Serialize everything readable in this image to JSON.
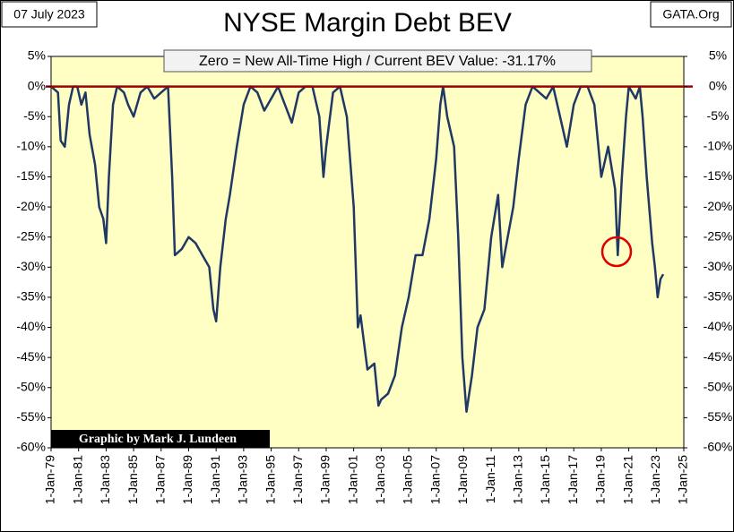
{
  "chart_data": {
    "type": "line",
    "title": "NYSE Margin Debt BEV",
    "date_label": "07 July 2023",
    "source": "GATA.Org",
    "annotation": "Zero = New All-Time High / Current BEV Value:  -31.17%",
    "credit": "Graphic by Mark J. Lundeen",
    "xlim": [
      1979,
      2025
    ],
    "xticks": [
      {
        "value": 1979,
        "label": "1-Jan-79"
      },
      {
        "value": 1981,
        "label": "1-Jan-81"
      },
      {
        "value": 1983,
        "label": "1-Jan-83"
      },
      {
        "value": 1985,
        "label": "1-Jan-85"
      },
      {
        "value": 1987,
        "label": "1-Jan-87"
      },
      {
        "value": 1989,
        "label": "1-Jan-89"
      },
      {
        "value": 1991,
        "label": "1-Jan-91"
      },
      {
        "value": 1993,
        "label": "1-Jan-93"
      },
      {
        "value": 1995,
        "label": "1-Jan-95"
      },
      {
        "value": 1997,
        "label": "1-Jan-97"
      },
      {
        "value": 1999,
        "label": "1-Jan-99"
      },
      {
        "value": 2001,
        "label": "1-Jan-01"
      },
      {
        "value": 2003,
        "label": "1-Jan-03"
      },
      {
        "value": 2005,
        "label": "1-Jan-05"
      },
      {
        "value": 2007,
        "label": "1-Jan-07"
      },
      {
        "value": 2009,
        "label": "1-Jan-09"
      },
      {
        "value": 2011,
        "label": "1-Jan-11"
      },
      {
        "value": 2013,
        "label": "1-Jan-13"
      },
      {
        "value": 2015,
        "label": "1-Jan-15"
      },
      {
        "value": 2017,
        "label": "1-Jan-17"
      },
      {
        "value": 2019,
        "label": "1-Jan-19"
      },
      {
        "value": 2021,
        "label": "1-Jan-21"
      },
      {
        "value": 2023,
        "label": "1-Jan-23"
      },
      {
        "value": 2025,
        "label": "1-Jan-25"
      }
    ],
    "ylim": [
      -60,
      5
    ],
    "yticks": [
      {
        "value": 5,
        "label": "5%"
      },
      {
        "value": 0,
        "label": "0%"
      },
      {
        "value": -5,
        "label": "-5%"
      },
      {
        "value": -10,
        "label": "-10%"
      },
      {
        "value": -15,
        "label": "-15%"
      },
      {
        "value": -20,
        "label": "-20%"
      },
      {
        "value": -25,
        "label": "-25%"
      },
      {
        "value": -30,
        "label": "-30%"
      },
      {
        "value": -35,
        "label": "-35%"
      },
      {
        "value": -40,
        "label": "-40%"
      },
      {
        "value": -45,
        "label": "-45%"
      },
      {
        "value": -50,
        "label": "-50%"
      },
      {
        "value": -55,
        "label": "-55%"
      },
      {
        "value": -60,
        "label": "-60%"
      }
    ],
    "y2lim": [
      -60,
      5
    ],
    "y2ticks": [
      {
        "value": 5,
        "label": "5%"
      },
      {
        "value": 0,
        "label": "0%"
      },
      {
        "value": -5,
        "label": "-5%"
      },
      {
        "value": -10,
        "label": "-10%"
      },
      {
        "value": -15,
        "label": "-15%"
      },
      {
        "value": -20,
        "label": "-20%"
      },
      {
        "value": -25,
        "label": "-25%"
      },
      {
        "value": -30,
        "label": "-30%"
      },
      {
        "value": -35,
        "label": "-35%"
      },
      {
        "value": -40,
        "label": "-40%"
      },
      {
        "value": -45,
        "label": "-45%"
      },
      {
        "value": -50,
        "label": "-50%"
      },
      {
        "value": -55,
        "label": "-55%"
      },
      {
        "value": -60,
        "label": "-60%"
      }
    ],
    "reference_line": {
      "value": 0,
      "color": "#a00000"
    },
    "background": "#ffffc4",
    "series": [
      {
        "name": "NYSE Margin Debt BEV",
        "color": "#1f3864",
        "x": [
          1979.0,
          1979.5,
          1979.7,
          1980.0,
          1980.3,
          1980.6,
          1980.9,
          1981.2,
          1981.5,
          1981.8,
          1982.2,
          1982.5,
          1982.8,
          1983.0,
          1983.2,
          1983.5,
          1983.8,
          1984.3,
          1984.6,
          1985.0,
          1985.5,
          1986.0,
          1986.5,
          1987.0,
          1987.5,
          1987.8,
          1988.0,
          1988.5,
          1989.0,
          1989.5,
          1990.0,
          1990.5,
          1990.8,
          1991.0,
          1991.3,
          1991.7,
          1992.0,
          1992.5,
          1993.0,
          1993.5,
          1994.0,
          1994.5,
          1995.0,
          1995.5,
          1996.0,
          1996.5,
          1997.0,
          1997.5,
          1998.0,
          1998.5,
          1998.8,
          1999.0,
          1999.5,
          2000.0,
          2000.5,
          2001.0,
          2001.3,
          2001.5,
          2002.0,
          2002.5,
          2002.8,
          2003.0,
          2003.5,
          2004.0,
          2004.5,
          2005.0,
          2005.5,
          2006.0,
          2006.5,
          2007.0,
          2007.3,
          2007.5,
          2007.8,
          2008.3,
          2008.6,
          2008.9,
          2009.2,
          2009.6,
          2010.0,
          2010.5,
          2011.0,
          2011.5,
          2011.8,
          2012.2,
          2012.6,
          2013.0,
          2013.5,
          2014.0,
          2014.5,
          2015.0,
          2015.5,
          2016.0,
          2016.5,
          2017.0,
          2017.5,
          2018.0,
          2018.5,
          2019.0,
          2019.5,
          2020.0,
          2020.2,
          2020.5,
          2020.8,
          2021.0,
          2021.5,
          2021.8,
          2022.0,
          2022.3,
          2022.7,
          2022.9,
          2023.1,
          2023.3,
          2023.5
        ],
        "values": [
          0,
          -1,
          -9,
          -10,
          -3,
          0,
          0,
          -3,
          -1,
          -8,
          -13,
          -20,
          -22,
          -26,
          -15,
          -3,
          0,
          -1,
          -3,
          -5,
          -1,
          0,
          -2,
          -1,
          0,
          -15,
          -28,
          -27,
          -25,
          -26,
          -28,
          -30,
          -37,
          -39,
          -30,
          -22,
          -18,
          -10,
          -3,
          0,
          -1,
          -4,
          -2,
          0,
          -3,
          -6,
          -1,
          0,
          0,
          -5,
          -15,
          -10,
          -1,
          0,
          -5,
          -20,
          -40,
          -38,
          -47,
          -46,
          -53,
          -52,
          -51,
          -48,
          -40,
          -35,
          -28,
          -28,
          -22,
          -12,
          -3,
          0,
          -5,
          -10,
          -25,
          -45,
          -54,
          -48,
          -40,
          -37,
          -25,
          -18,
          -30,
          -25,
          -20,
          -12,
          -3,
          0,
          -1,
          -2,
          0,
          -5,
          -10,
          -3,
          0,
          0,
          -3,
          -15,
          -10,
          -17,
          -28,
          -15,
          -5,
          0,
          -2,
          0,
          -5,
          -15,
          -26,
          -30,
          -35,
          -32,
          -31.17
        ]
      }
    ]
  }
}
